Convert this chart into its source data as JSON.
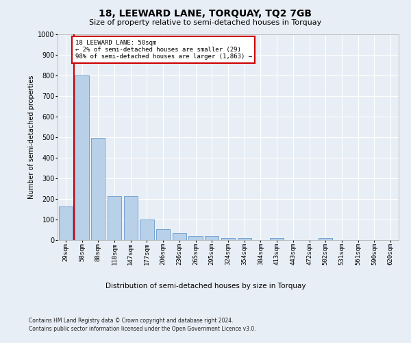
{
  "title": "18, LEEWARD LANE, TORQUAY, TQ2 7GB",
  "subtitle": "Size of property relative to semi-detached houses in Torquay",
  "xlabel": "Distribution of semi-detached houses by size in Torquay",
  "ylabel": "Number of semi-detached properties",
  "footnote1": "Contains HM Land Registry data © Crown copyright and database right 2024.",
  "footnote2": "Contains public sector information licensed under the Open Government Licence v3.0.",
  "annotation_line1": "18 LEEWARD LANE: 50sqm",
  "annotation_line2": "← 2% of semi-detached houses are smaller (29)",
  "annotation_line3": "98% of semi-detached houses are larger (1,863) →",
  "bar_color": "#b8d0e8",
  "bar_edge_color": "#6699cc",
  "highlight_color": "#cc0000",
  "categories": [
    "29sqm",
    "58sqm",
    "88sqm",
    "118sqm",
    "147sqm",
    "177sqm",
    "206sqm",
    "236sqm",
    "265sqm",
    "295sqm",
    "324sqm",
    "354sqm",
    "384sqm",
    "413sqm",
    "443sqm",
    "472sqm",
    "502sqm",
    "531sqm",
    "561sqm",
    "590sqm",
    "620sqm"
  ],
  "values": [
    165,
    800,
    497,
    215,
    215,
    100,
    52,
    35,
    20,
    20,
    10,
    10,
    0,
    10,
    0,
    0,
    10,
    0,
    0,
    0,
    0
  ],
  "ylim": [
    0,
    1000
  ],
  "yticks": [
    0,
    100,
    200,
    300,
    400,
    500,
    600,
    700,
    800,
    900,
    1000
  ],
  "background_color": "#e8eef5",
  "plot_bg_color": "#e8eef5",
  "title_fontsize": 10,
  "subtitle_fontsize": 8,
  "ylabel_fontsize": 7,
  "xlabel_fontsize": 7.5,
  "tick_fontsize": 6.5,
  "footnote_fontsize": 5.5,
  "annotation_fontsize": 6.5
}
